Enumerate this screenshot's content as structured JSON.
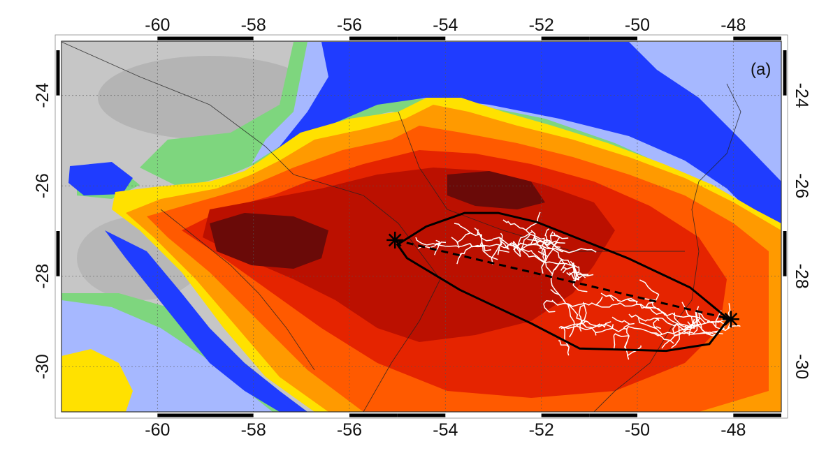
{
  "panel_label": "(a)",
  "axes": {
    "lon_ticks": [
      "-60",
      "-58",
      "-56",
      "-54",
      "-52",
      "-50",
      "-48"
    ],
    "lat_ticks": [
      "-24",
      "-26",
      "-28",
      "-30"
    ],
    "lon_range": [
      -62,
      -47
    ],
    "lat_range": [
      -22.8,
      -31.0
    ]
  },
  "markers": [
    {
      "name": "start",
      "lon": -55.05,
      "lat": -27.2
    },
    {
      "name": "end",
      "lon": -48.05,
      "lat": -28.95
    }
  ],
  "convex_hull": [
    [
      -55.0,
      -27.3
    ],
    [
      -54.4,
      -26.9
    ],
    [
      -53.6,
      -26.6
    ],
    [
      -52.9,
      -26.6
    ],
    [
      -52.1,
      -26.8
    ],
    [
      -50.2,
      -27.6
    ],
    [
      -48.9,
      -28.25
    ],
    [
      -48.1,
      -28.95
    ],
    [
      -48.5,
      -29.5
    ],
    [
      -49.4,
      -29.65
    ],
    [
      -51.2,
      -29.6
    ],
    [
      -52.2,
      -29.05
    ],
    [
      -53.7,
      -28.3
    ],
    [
      -54.8,
      -27.6
    ]
  ],
  "colors": {
    "gray_light": "#c6c6c6",
    "gray_mid": "#a8a8a8",
    "green": "#7ed67e",
    "light_blue": "#a6b8ff",
    "blue": "#1f3cff",
    "yellow": "#ffe100",
    "orange": "#ff9a00",
    "orange_red": "#ff5a00",
    "red": "#e52400",
    "dark_red": "#bb1000",
    "maroon": "#6a0a08",
    "flash_white": "#ffffff",
    "outline_black": "#000000"
  }
}
